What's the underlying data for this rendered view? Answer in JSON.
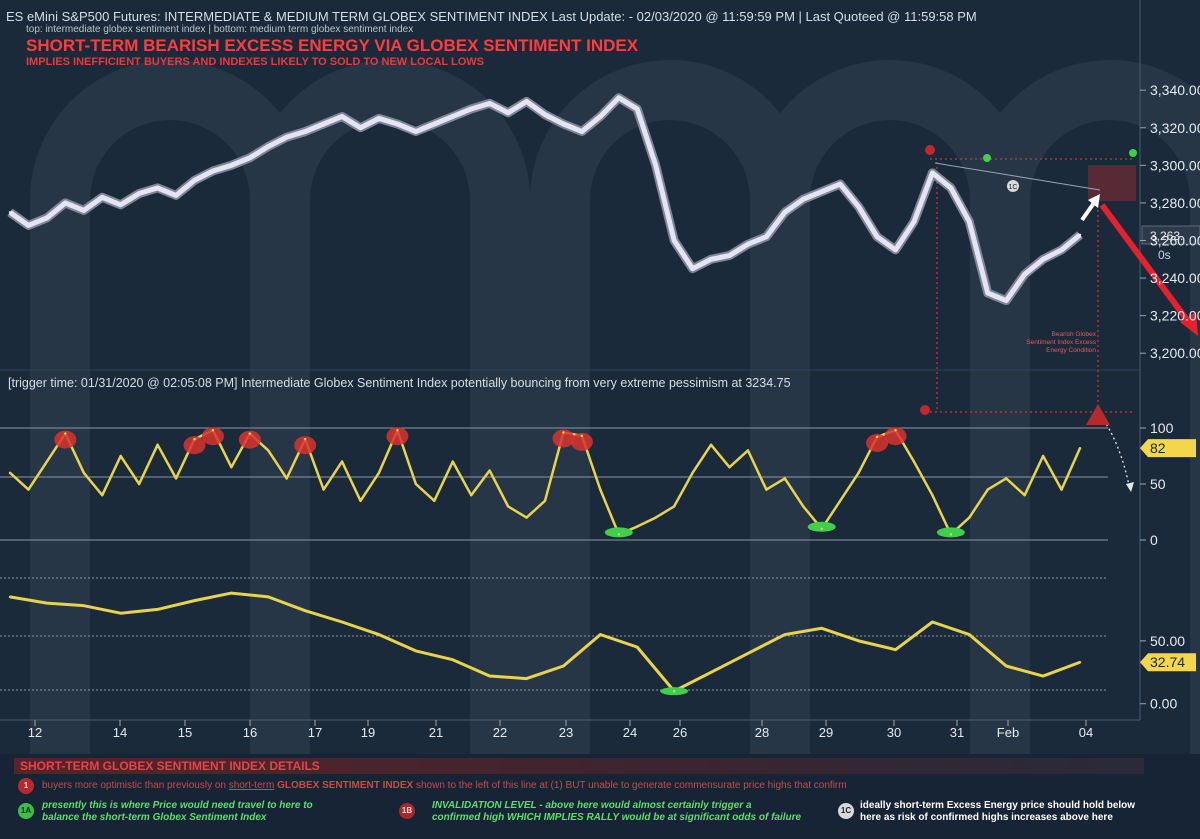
{
  "header": {
    "title": "ES eMini S&P500 Futures: INTERMEDIATE & MEDIUM TERM GLOBEX SENTIMENT INDEX Last Update:  - 02/03/2020 @ 11:59:59 PM | Last Quoteed @ 11:59:58 PM",
    "subtitle": "top: intermediate globex sentiment index | bottom: medium term globex sentiment index",
    "headline": "SHORT-TERM BEARISH EXCESS ENERGY VIA GLOBEX SENTIMENT INDEX",
    "subheadline": "IMPLIES INEFFICIENT BUYERS AND INDEXES LIKELY TO SOLD TO NEW LOCAL LOWS"
  },
  "trigger_text": "[trigger time: 01/31/2020 @ 02:05:08 PM]   Intermediate Globex Sentiment Index potentially bouncing from very extreme pessimism at 3234.75",
  "annotations": {
    "bearish_note_1": "Bearish Globex",
    "bearish_note_2": "Sentiment Index Excess",
    "bearish_note_3": "Energy Condition",
    "marker_1c": "1C",
    "price_tag": "3,263.",
    "price_tag_sub": "0s"
  },
  "colors": {
    "background": "#1b2a3b",
    "price": "#e6e3f5",
    "sentiment": "#e8d44a",
    "excess_high": "#d7332f",
    "excess_low": "#3fcf4a",
    "headline": "#ff3b3b",
    "arrow": "#e6212e"
  },
  "details": {
    "title": "SHORT-TERM GLOBEX SENTIMENT INDEX DETAILS",
    "line1_prefix": "buyers more optimistic than previously on ",
    "line1_link": "short-term",
    "line1_mid": " GLOBEX SENTIMENT INDEX",
    "line1_suffix": " shown to the left of this line at (1)  BUT unable to generate commensurate price highs that confirm",
    "badge1": "1",
    "badge1a": "1A",
    "line2a": "presently  this is where Price would need travel to here to",
    "line2b": "balance the short-term Globex Sentiment Index",
    "badge1b": "1B",
    "line3a": "INVALIDATION LEVEL - above here would almost certainly trigger a",
    "line3b": "confirmed high WHICH IMPLIES RALLY would be at significant odds of failure",
    "badge1c": "1C",
    "line4a": "ideally short-term Excess Energy price should hold below",
    "line4b": "here as risk of confirmed highs increases above here"
  },
  "chart_data": [
    {
      "type": "line",
      "name": "ES price",
      "title": "",
      "ylim": [
        3190,
        3355
      ],
      "y_ticks": [
        "3,340.00",
        "3,320.00",
        "3,300.00",
        "3,280.00",
        "3,260.00",
        "3,240.00",
        "3,220.00",
        "3,200.00"
      ],
      "y_tick_values": [
        3340,
        3320,
        3300,
        3280,
        3260,
        3240,
        3220,
        3200
      ],
      "x": [
        0,
        0.5,
        1,
        1.5,
        2,
        2.5,
        3,
        3.5,
        4,
        4.5,
        5,
        5.5,
        6,
        6.5,
        7,
        7.5,
        8,
        8.5,
        9,
        9.5,
        10,
        10.5,
        11,
        11.5,
        12,
        12.5,
        13,
        13.5,
        14,
        14.5,
        15,
        15.5,
        16,
        16.5,
        17,
        17.5,
        18,
        18.5,
        19,
        19.5,
        20,
        20.5,
        21,
        21.5,
        22,
        22.5,
        23,
        23.5,
        24,
        24.5,
        25,
        25.5,
        26,
        26.5,
        27,
        27.5,
        28,
        28.5,
        29
      ],
      "values": [
        3275,
        3268,
        3272,
        3280,
        3276,
        3283,
        3279,
        3285,
        3288,
        3284,
        3292,
        3297,
        3300,
        3304,
        3310,
        3315,
        3318,
        3322,
        3326,
        3320,
        3325,
        3322,
        3318,
        3322,
        3326,
        3330,
        3333,
        3328,
        3334,
        3327,
        3322,
        3318,
        3326,
        3336,
        3330,
        3300,
        3260,
        3245,
        3250,
        3252,
        3258,
        3262,
        3275,
        3282,
        3286,
        3290,
        3278,
        3262,
        3255,
        3270,
        3296,
        3288,
        3270,
        3232,
        3228,
        3242,
        3250,
        3255,
        3263
      ]
    },
    {
      "type": "line",
      "name": "Intermediate Globex Sentiment Index",
      "ylim": [
        0,
        100
      ],
      "y_ticks": [
        "100",
        "50",
        "0"
      ],
      "y_tick_values": [
        100,
        50,
        0
      ],
      "current_value_label": "82",
      "x": [
        0,
        0.5,
        1,
        1.5,
        2,
        2.5,
        3,
        3.5,
        4,
        4.5,
        5,
        5.5,
        6,
        6.5,
        7,
        7.5,
        8,
        8.5,
        9,
        9.5,
        10,
        10.5,
        11,
        11.5,
        12,
        12.5,
        13,
        13.5,
        14,
        14.5,
        15,
        15.5,
        16,
        16.5,
        17,
        17.5,
        18,
        18.5,
        19,
        19.5,
        20,
        20.5,
        21,
        21.5,
        22,
        22.5,
        23,
        23.5,
        24,
        24.5,
        25,
        25.5,
        26,
        26.5,
        27,
        27.5,
        28,
        28.5,
        29
      ],
      "values": [
        60,
        45,
        70,
        95,
        60,
        40,
        75,
        50,
        85,
        55,
        90,
        98,
        65,
        95,
        80,
        55,
        90,
        45,
        70,
        35,
        60,
        98,
        50,
        35,
        70,
        40,
        62,
        30,
        20,
        35,
        96,
        93,
        45,
        5,
        12,
        20,
        30,
        60,
        85,
        65,
        80,
        45,
        55,
        30,
        10,
        35,
        60,
        92,
        98,
        70,
        40,
        5,
        20,
        45,
        55,
        40,
        75,
        45,
        82
      ],
      "excess_high_level": 90,
      "excess_low_level": 10
    },
    {
      "type": "line",
      "name": "Medium Term Globex Sentiment Index",
      "ylim": [
        -5,
        100
      ],
      "y_ticks": [
        "50.00",
        "0.00"
      ],
      "y_tick_values": [
        50,
        0
      ],
      "current_value_label": "32.74",
      "x": [
        0,
        1,
        2,
        3,
        4,
        5,
        6,
        7,
        8,
        9,
        10,
        11,
        12,
        13,
        14,
        15,
        16,
        17,
        18,
        19,
        20,
        21,
        22,
        23,
        24,
        25,
        26,
        27,
        28,
        29
      ],
      "values": [
        85,
        80,
        78,
        72,
        75,
        82,
        88,
        85,
        74,
        65,
        55,
        42,
        35,
        22,
        20,
        30,
        55,
        45,
        10,
        25,
        40,
        55,
        60,
        50,
        43,
        65,
        55,
        30,
        22,
        33
      ]
    }
  ],
  "x_axis": {
    "labels": [
      "12",
      "14",
      "15",
      "16",
      "17",
      "19",
      "21",
      "22",
      "23",
      "24",
      "26",
      "28",
      "29",
      "30",
      "31",
      "Feb",
      "04"
    ]
  }
}
